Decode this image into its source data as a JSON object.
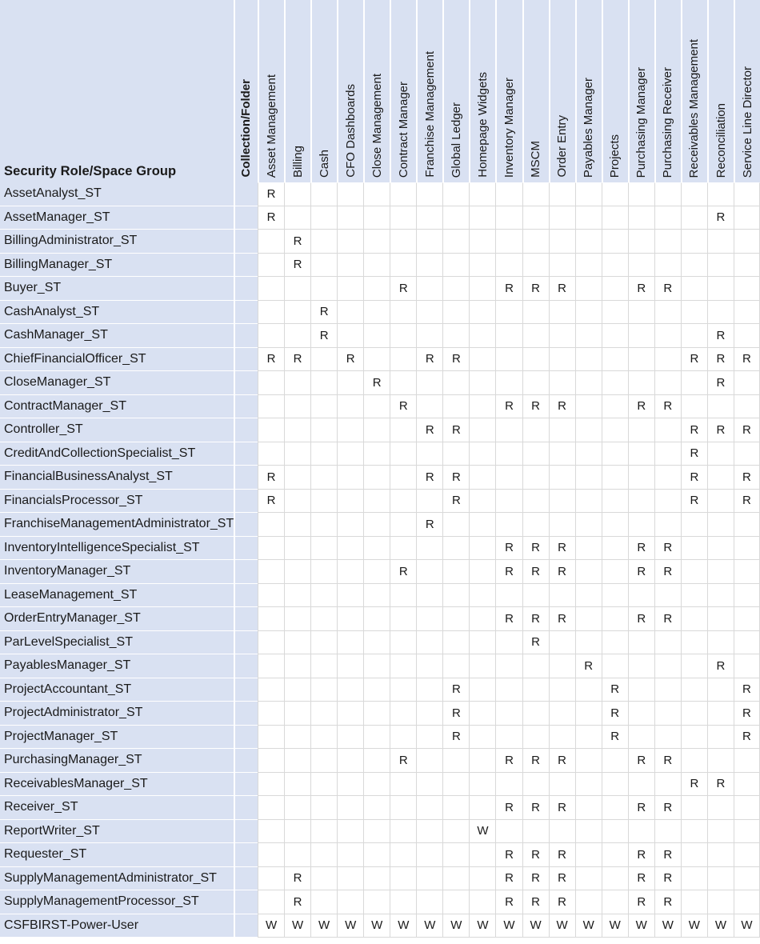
{
  "colors": {
    "panel_bg": "#d9e1f2",
    "grid_line": "#d9d9d9",
    "text": "#1a1a1a",
    "cell_bg": "#ffffff"
  },
  "table": {
    "corner_label": "Security Role/Space Group",
    "folder_header": "Collection/Folder",
    "columns": [
      "Asset Management",
      "Billing",
      "Cash",
      "CFO Dashboards",
      "Close Management",
      "Contract Manager",
      "Franchise Management",
      "Global Ledger",
      "Homepage Widgets",
      "Inventory Manager",
      "MSCM",
      "Order Entry",
      "Payables Manager",
      "Projects",
      "Purchasing Manager",
      "Purchasing Receiver",
      "Receivables Management",
      "Reconciliation",
      "Service Line Director"
    ],
    "rows": [
      {
        "role": "AssetAnalyst_ST",
        "access": {
          "Asset Management": "R"
        }
      },
      {
        "role": "AssetManager_ST",
        "access": {
          "Asset Management": "R",
          "Reconciliation": "R"
        }
      },
      {
        "role": "BillingAdministrator_ST",
        "access": {
          "Billing": "R"
        }
      },
      {
        "role": "BillingManager_ST",
        "access": {
          "Billing": "R"
        }
      },
      {
        "role": "Buyer_ST",
        "access": {
          "Contract Manager": "R",
          "Inventory Manager": "R",
          "MSCM": "R",
          "Order Entry": "R",
          "Purchasing Manager": "R",
          "Purchasing Receiver": "R"
        }
      },
      {
        "role": "CashAnalyst_ST",
        "access": {
          "Cash": "R"
        }
      },
      {
        "role": "CashManager_ST",
        "access": {
          "Cash": "R",
          "Reconciliation": "R"
        }
      },
      {
        "role": "ChiefFinancialOfficer_ST",
        "access": {
          "Asset Management": "R",
          "Billing": "R",
          "CFO Dashboards": "R",
          "Franchise Management": "R",
          "Global Ledger": "R",
          "Receivables Management": "R",
          "Reconciliation": "R",
          "Service Line Director": "R"
        }
      },
      {
        "role": "CloseManager_ST",
        "access": {
          "Close Management": "R",
          "Reconciliation": "R"
        }
      },
      {
        "role": "ContractManager_ST",
        "access": {
          "Contract Manager": "R",
          "Inventory Manager": "R",
          "MSCM": "R",
          "Order Entry": "R",
          "Purchasing Manager": "R",
          "Purchasing Receiver": "R"
        }
      },
      {
        "role": "Controller_ST",
        "access": {
          "Franchise Management": "R",
          "Global Ledger": "R",
          "Receivables Management": "R",
          "Reconciliation": "R",
          "Service Line Director": "R"
        }
      },
      {
        "role": "CreditAndCollectionSpecialist_ST",
        "access": {
          "Receivables Management": "R"
        }
      },
      {
        "role": "FinancialBusinessAnalyst_ST",
        "access": {
          "Asset Management": "R",
          "Franchise Management": "R",
          "Global Ledger": "R",
          "Receivables Management": "R",
          "Service Line Director": "R"
        }
      },
      {
        "role": "FinancialsProcessor_ST",
        "access": {
          "Asset Management": "R",
          "Global Ledger": "R",
          "Receivables Management": "R",
          "Service Line Director": "R"
        }
      },
      {
        "role": "FranchiseManagementAdministrator_ST",
        "access": {
          "Franchise Management": "R"
        }
      },
      {
        "role": "InventoryIntelligenceSpecialist_ST",
        "access": {
          "Inventory Manager": "R",
          "MSCM": "R",
          "Order Entry": "R",
          "Purchasing Manager": "R",
          "Purchasing Receiver": "R"
        }
      },
      {
        "role": "InventoryManager_ST",
        "access": {
          "Contract Manager": "R",
          "Inventory Manager": "R",
          "MSCM": "R",
          "Order Entry": "R",
          "Purchasing Manager": "R",
          "Purchasing Receiver": "R"
        }
      },
      {
        "role": "LeaseManagement_ST",
        "access": {}
      },
      {
        "role": "OrderEntryManager_ST",
        "access": {
          "Inventory Manager": "R",
          "MSCM": "R",
          "Order Entry": "R",
          "Purchasing Manager": "R",
          "Purchasing Receiver": "R"
        }
      },
      {
        "role": "ParLevelSpecialist_ST",
        "access": {
          "MSCM": "R"
        }
      },
      {
        "role": "PayablesManager_ST",
        "access": {
          "Payables Manager": "R",
          "Reconciliation": "R"
        }
      },
      {
        "role": "ProjectAccountant_ST",
        "access": {
          "Global Ledger": "R",
          "Projects": "R",
          "Service Line Director": "R"
        }
      },
      {
        "role": "ProjectAdministrator_ST",
        "access": {
          "Global Ledger": "R",
          "Projects": "R",
          "Service Line Director": "R"
        }
      },
      {
        "role": "ProjectManager_ST",
        "access": {
          "Global Ledger": "R",
          "Projects": "R",
          "Service Line Director": "R"
        }
      },
      {
        "role": "PurchasingManager_ST",
        "access": {
          "Contract Manager": "R",
          "Inventory Manager": "R",
          "MSCM": "R",
          "Order Entry": "R",
          "Purchasing Manager": "R",
          "Purchasing Receiver": "R"
        }
      },
      {
        "role": "ReceivablesManager_ST",
        "access": {
          "Receivables Management": "R",
          "Reconciliation": "R"
        }
      },
      {
        "role": "Receiver_ST",
        "access": {
          "Inventory Manager": "R",
          "MSCM": "R",
          "Order Entry": "R",
          "Purchasing Manager": "R",
          "Purchasing Receiver": "R"
        }
      },
      {
        "role": "ReportWriter_ST",
        "access": {
          "Homepage Widgets": "W"
        }
      },
      {
        "role": "Requester_ST",
        "access": {
          "Inventory Manager": "R",
          "MSCM": "R",
          "Order Entry": "R",
          "Purchasing Manager": "R",
          "Purchasing Receiver": "R"
        }
      },
      {
        "role": "SupplyManagementAdministrator_ST",
        "access": {
          "Billing": "R",
          "Inventory Manager": "R",
          "MSCM": "R",
          "Order Entry": "R",
          "Purchasing Manager": "R",
          "Purchasing Receiver": "R"
        }
      },
      {
        "role": "SupplyManagementProcessor_ST",
        "access": {
          "Billing": "R",
          "Inventory Manager": "R",
          "MSCM": "R",
          "Order Entry": "R",
          "Purchasing Manager": "R",
          "Purchasing Receiver": "R"
        }
      },
      {
        "role": "CSFBIRST-Power-User",
        "access": {
          "Asset Management": "W",
          "Billing": "W",
          "Cash": "W",
          "CFO Dashboards": "W",
          "Close Management": "W",
          "Contract Manager": "W",
          "Franchise Management": "W",
          "Global Ledger": "W",
          "Homepage Widgets": "W",
          "Inventory Manager": "W",
          "MSCM": "W",
          "Order Entry": "W",
          "Payables Manager": "W",
          "Projects": "W",
          "Purchasing Manager": "W",
          "Purchasing Receiver": "W",
          "Receivables Management": "W",
          "Reconciliation": "W",
          "Service Line Director": "W"
        }
      }
    ]
  }
}
